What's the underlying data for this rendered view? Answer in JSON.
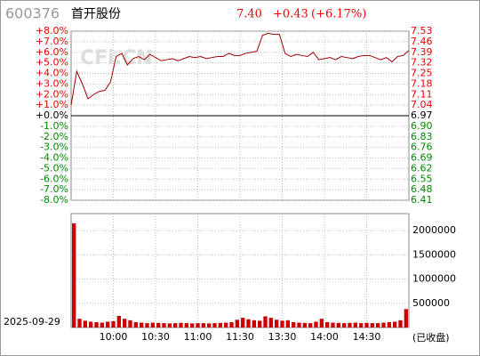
{
  "header": {
    "code": "600376",
    "name": "首开股份",
    "price": "7.40",
    "change": "+0.43",
    "change_pct": "(+6.17%)",
    "status": "(已收盘)",
    "date": "2025-09-29",
    "watermark": "CFi.CN"
  },
  "chart_data": [
    {
      "type": "line",
      "xlim": [
        0,
        240
      ],
      "ylim": [
        -8,
        8
      ],
      "y2lim": [
        6.41,
        7.53
      ],
      "grid": true,
      "yticks": [
        {
          "value": 8,
          "label": "+8.0%"
        },
        {
          "value": 7,
          "label": "+7.0%"
        },
        {
          "value": 6,
          "label": "+6.0%"
        },
        {
          "value": 5,
          "label": "+5.0%"
        },
        {
          "value": 4,
          "label": "+4.0%"
        },
        {
          "value": 3,
          "label": "+3.0%"
        },
        {
          "value": 2,
          "label": "+2.0%"
        },
        {
          "value": 1,
          "label": "+1.0%"
        },
        {
          "value": 0,
          "label": "+0.0%"
        },
        {
          "value": -1,
          "label": "-1.0%"
        },
        {
          "value": -2,
          "label": "-2.0%"
        },
        {
          "value": -3,
          "label": "-3.0%"
        },
        {
          "value": -4,
          "label": "-4.0%"
        },
        {
          "value": -5,
          "label": "-5.0%"
        },
        {
          "value": -6,
          "label": "-6.0%"
        },
        {
          "value": -7,
          "label": "-7.0%"
        },
        {
          "value": -8,
          "label": "-8.0%"
        }
      ],
      "y2ticks": [
        7.53,
        7.46,
        7.39,
        7.32,
        7.25,
        7.18,
        7.11,
        7.04,
        6.97,
        {
          "value": 6.9,
          "label": "6.90"
        },
        6.83,
        6.76,
        6.69,
        6.62,
        6.55,
        6.48,
        6.41
      ],
      "x": [
        0,
        4,
        8,
        12,
        16,
        20,
        24,
        28,
        32,
        36,
        40,
        44,
        48,
        52,
        56,
        60,
        64,
        68,
        72,
        76,
        80,
        84,
        88,
        92,
        96,
        100,
        104,
        108,
        112,
        116,
        120,
        124,
        128,
        132,
        136,
        140,
        144,
        148,
        152,
        156,
        160,
        164,
        168,
        172,
        176,
        180,
        184,
        188,
        192,
        196,
        200,
        204,
        208,
        212,
        216,
        220,
        224,
        228,
        232,
        236,
        240
      ],
      "series": [
        {
          "color": "#a00000",
          "values": [
            1.0,
            4.2,
            3.0,
            1.6,
            2.0,
            2.3,
            2.4,
            3.2,
            5.6,
            5.9,
            4.8,
            5.4,
            5.6,
            5.3,
            5.8,
            5.5,
            5.2,
            5.3,
            5.4,
            5.2,
            5.4,
            5.6,
            5.5,
            5.6,
            5.4,
            5.5,
            5.6,
            5.6,
            5.9,
            5.7,
            5.7,
            5.9,
            6.0,
            6.1,
            7.6,
            7.8,
            7.7,
            7.7,
            5.9,
            5.6,
            5.8,
            5.7,
            5.6,
            6.0,
            5.3,
            5.4,
            5.5,
            5.3,
            5.6,
            5.5,
            5.4,
            5.6,
            5.7,
            5.7,
            5.5,
            5.3,
            5.5,
            5.1,
            5.6,
            5.7,
            6.17
          ]
        }
      ]
    },
    {
      "type": "bar",
      "xlim": [
        0,
        240
      ],
      "ylim": [
        0,
        2350000
      ],
      "grid": true,
      "yticks": [
        500000,
        1000000,
        1500000,
        2000000
      ],
      "xticks": [
        {
          "value": 30,
          "label": "10:00"
        },
        {
          "value": 60,
          "label": "10:30"
        },
        {
          "value": 90,
          "label": "11:00"
        },
        {
          "value": 120,
          "label": "11:30"
        },
        {
          "value": 150,
          "label": "13:30"
        },
        {
          "value": 180,
          "label": "14:00"
        },
        {
          "value": 210,
          "label": "14:30"
        }
      ],
      "x": [
        0,
        4,
        8,
        12,
        16,
        20,
        24,
        28,
        32,
        36,
        40,
        44,
        48,
        52,
        56,
        60,
        64,
        68,
        72,
        76,
        80,
        84,
        88,
        92,
        96,
        100,
        104,
        108,
        112,
        116,
        120,
        124,
        128,
        132,
        136,
        140,
        144,
        148,
        152,
        156,
        160,
        164,
        168,
        172,
        176,
        180,
        184,
        188,
        192,
        196,
        200,
        204,
        208,
        212,
        216,
        220,
        224,
        228,
        232,
        236
      ],
      "series": [
        {
          "color": "#cc0000",
          "values": [
            2150000,
            180000,
            140000,
            120000,
            110000,
            100000,
            120000,
            130000,
            240000,
            180000,
            150000,
            110000,
            100000,
            90000,
            100000,
            95000,
            90000,
            85000,
            90000,
            95000,
            90000,
            85000,
            90000,
            90000,
            85000,
            90000,
            95000,
            100000,
            110000,
            160000,
            200000,
            170000,
            150000,
            140000,
            230000,
            200000,
            160000,
            140000,
            150000,
            110000,
            100000,
            95000,
            90000,
            120000,
            180000,
            110000,
            100000,
            95000,
            90000,
            95000,
            100000,
            90000,
            95000,
            90000,
            90000,
            100000,
            110000,
            120000,
            150000,
            380000
          ]
        }
      ]
    }
  ]
}
